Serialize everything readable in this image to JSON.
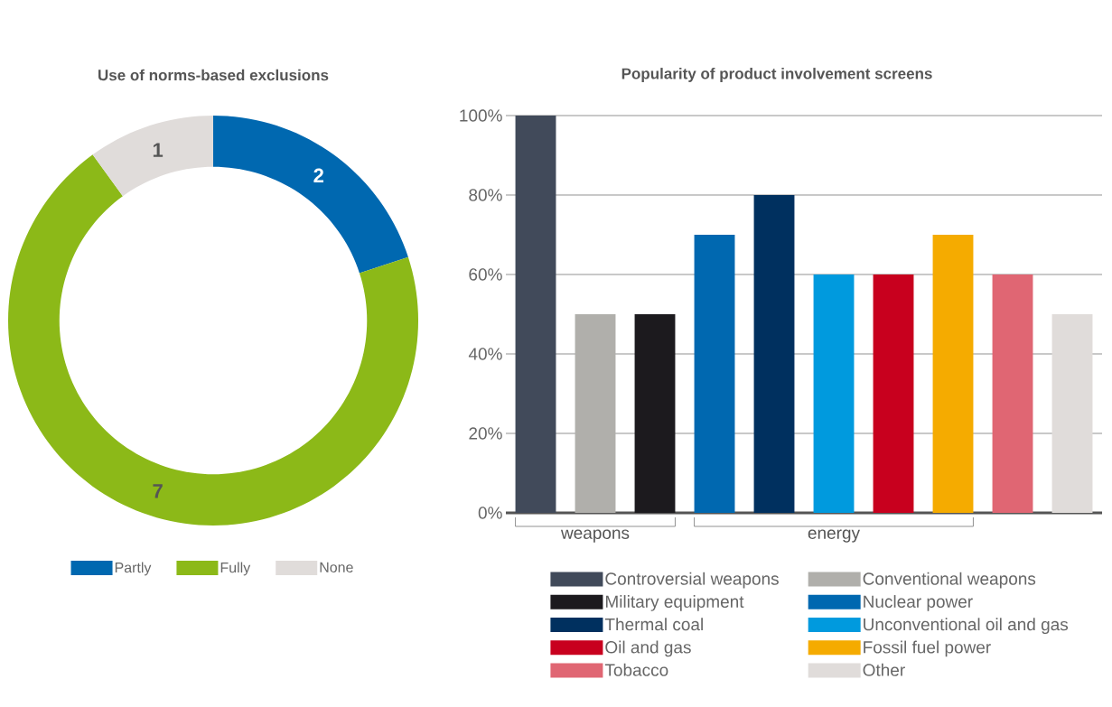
{
  "chart_data": [
    {
      "type": "donut",
      "title": "Use of norms-based exclusions",
      "categories": [
        "Partly",
        "Fully",
        "None"
      ],
      "values": [
        2,
        7,
        1
      ],
      "colors": [
        "#0068b0",
        "#8cb918",
        "#e0dcda"
      ],
      "data_labels": true,
      "legend": "bottom"
    },
    {
      "type": "bar",
      "title": "Popularity of product involvement screens",
      "categories": [
        null,
        null,
        null,
        null,
        null,
        null,
        null,
        null,
        null,
        null
      ],
      "series": [
        {
          "name": "Controversial weapons",
          "color": "#414a5a",
          "values": [
            100,
            null,
            null,
            null,
            null,
            null,
            null,
            null,
            null,
            null
          ]
        },
        {
          "name": "Conventional weapons",
          "color": "#b0afab",
          "values": [
            null,
            50,
            null,
            null,
            null,
            null,
            null,
            null,
            null,
            null
          ]
        },
        {
          "name": "Military equipment",
          "color": "#1c1a1e",
          "values": [
            null,
            null,
            50,
            null,
            null,
            null,
            null,
            null,
            null,
            null
          ]
        },
        {
          "name": "Nuclear power",
          "color": "#0068b0",
          "values": [
            null,
            null,
            null,
            70,
            null,
            null,
            null,
            null,
            null,
            null
          ]
        },
        {
          "name": "Thermal coal",
          "color": "#00305f",
          "values": [
            null,
            null,
            null,
            null,
            80,
            null,
            null,
            null,
            null,
            null
          ]
        },
        {
          "name": "Unconventional oil and gas",
          "color": "#009ade",
          "values": [
            null,
            null,
            null,
            null,
            null,
            60,
            null,
            null,
            null,
            null
          ]
        },
        {
          "name": "Oil and gas",
          "color": "#c8001e",
          "values": [
            null,
            null,
            null,
            null,
            null,
            null,
            60,
            null,
            null,
            null
          ]
        },
        {
          "name": "Fossil fuel power",
          "color": "#f5ab00",
          "values": [
            null,
            null,
            null,
            null,
            null,
            null,
            null,
            70,
            null,
            null
          ]
        },
        {
          "name": "Tobacco",
          "color": "#e06673",
          "values": [
            null,
            null,
            null,
            null,
            null,
            null,
            null,
            null,
            60,
            null
          ]
        },
        {
          "name": "Other",
          "color": "#e0dcda",
          "values": [
            null,
            null,
            null,
            null,
            null,
            null,
            null,
            null,
            null,
            50
          ]
        }
      ],
      "ylim": [
        0,
        100
      ],
      "yticks": [
        {
          "value": 0,
          "label": "0%"
        },
        {
          "value": 20,
          "label": "20%"
        },
        {
          "value": 40,
          "label": "40%"
        },
        {
          "value": 60,
          "label": "60%"
        },
        {
          "value": 80,
          "label": "80%"
        },
        {
          "value": 100,
          "label": "100%"
        }
      ],
      "grid": "y",
      "tick_labels": "y",
      "legend": "bottom",
      "annotations": [
        "weapons",
        "energy"
      ]
    }
  ]
}
